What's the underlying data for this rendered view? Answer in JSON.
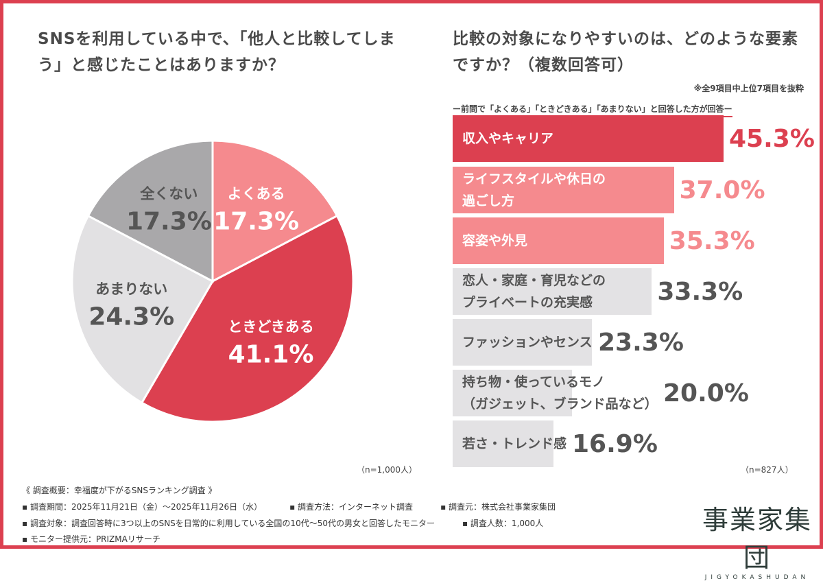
{
  "left": {
    "title": "SNSを利用している中で、「他人と比較してしまう」と感じたことはありますか？",
    "n": "（n=1,000人）"
  },
  "right": {
    "title": "比較の対象になりやすいのは、どのような要素ですか？（複数回答可）",
    "note1": "※全9項目中上位7項目を抜粋",
    "note2": "ー前問で「よくある」「ときどきある」「あまりない」と回答した方が回答ー",
    "n": "（n=827人）"
  },
  "chart_data": [
    {
      "type": "pie",
      "title": "SNSを利用している中で、「他人と比較してしまう」と感じたことはありますか？",
      "unit": "%",
      "slices": [
        {
          "label": "よくある",
          "value": 17.3,
          "display": "17.3%",
          "color": "#f58a8e",
          "text": "#ffffff"
        },
        {
          "label": "ときどきある",
          "value": 41.1,
          "display": "41.1%",
          "color": "#dc4050",
          "text": "#ffffff"
        },
        {
          "label": "あまりない",
          "value": 24.3,
          "display": "24.3%",
          "color": "#e2e1e3",
          "text": "#555555"
        },
        {
          "label": "全くない",
          "value": 17.3,
          "display": "17.3%",
          "color": "#a9a8aa",
          "text": "#555555"
        }
      ]
    },
    {
      "type": "bar",
      "orientation": "horizontal",
      "title": "比較の対象になりやすいのは、どのような要素ですか？（複数回答可）",
      "unit": "%",
      "categories": [
        "収入やキャリア",
        "ライフスタイルや休日の過ごし方",
        "容姿や外見",
        "恋人・家庭・育児などのプライベートの充実感",
        "ファッションやセンス",
        "持ち物・使っているモノ（ガジェット、ブランド品など）",
        "若さ・トレンド感"
      ],
      "label_lines": [
        [
          "収入やキャリア"
        ],
        [
          "ライフスタイルや休日の",
          "過ごし方"
        ],
        [
          "容姿や外見"
        ],
        [
          "恋人・家庭・育児などの",
          "プライベートの充実感"
        ],
        [
          "ファッションやセンス"
        ],
        [
          "持ち物・使っているモノ",
          "（ガジェット、ブランド品など）"
        ],
        [
          "若さ・トレンド感"
        ]
      ],
      "values": [
        45.3,
        37.0,
        35.3,
        33.3,
        23.3,
        20.0,
        16.9
      ],
      "display": [
        "45.3%",
        "37.0%",
        "35.3%",
        "33.3%",
        "23.3%",
        "20.0%",
        "16.9%"
      ],
      "bar_colors": [
        "#dc4050",
        "#f58a8e",
        "#f58a8e",
        "#e3e2e4",
        "#e3e2e4",
        "#e3e2e4",
        "#e3e2e4"
      ],
      "label_colors": [
        "#ffffff",
        "#ffffff",
        "#ffffff",
        "#555555",
        "#555555",
        "#555555",
        "#555555"
      ],
      "value_colors": [
        "#dc4050",
        "#f58a8e",
        "#f58a8e",
        "#555555",
        "#555555",
        "#555555",
        "#555555"
      ]
    }
  ],
  "footer": {
    "heading": "《 調査概要：幸福度が下がるSNSランキング調査 》",
    "line1": [
      "▪ 調査期間：2025年11月21日（金）～2025年11月26日（水）",
      "▪ 調査方法：インターネット調査",
      "▪ 調査元：株式会社事業家集団"
    ],
    "line2": [
      "▪ 調査対象：調査回答時に3つ以上のSNSを日常的に利用している全国の10代～50代の男女と回答したモニター",
      "▪ 調査人数：1,000人"
    ],
    "line3": "▪ モニター提供元：PRIZMAリサーチ"
  },
  "logo": {
    "kanji": "事業家集団",
    "roman": "JIGYOKASHUDAN"
  }
}
